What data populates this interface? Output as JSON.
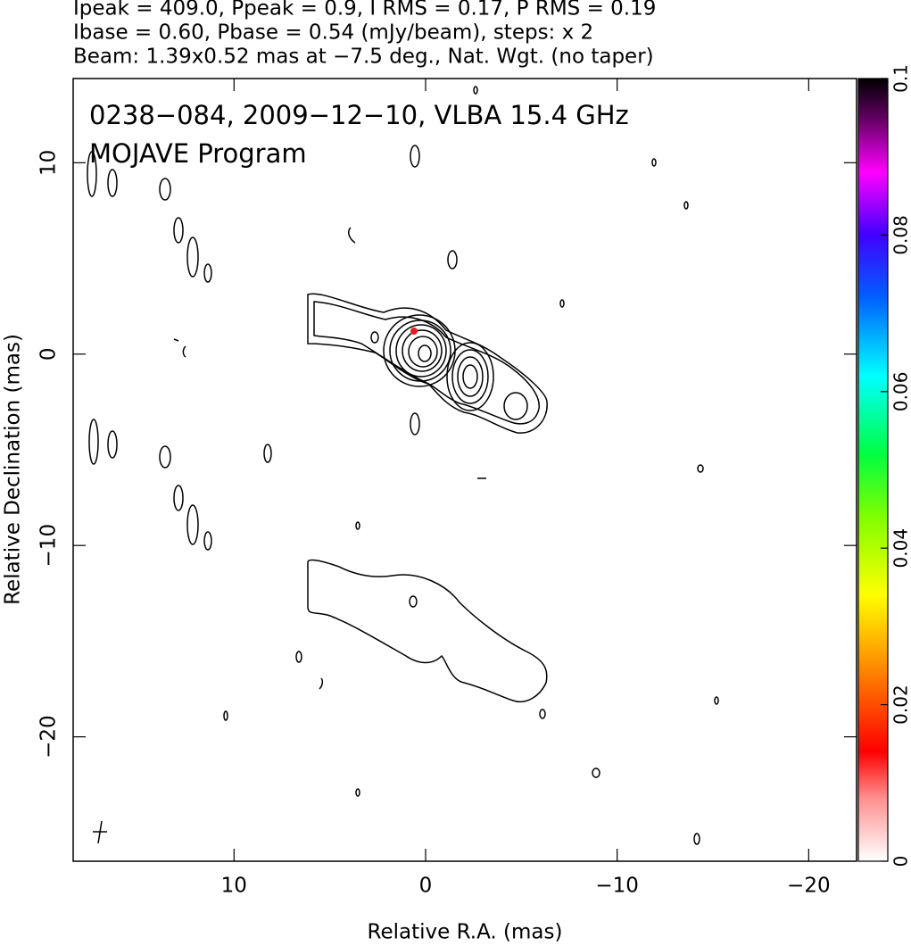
{
  "chart_data": {
    "type": "contour",
    "title_lines": [
      "Ipeak = 409.0, Ppeak = 0.9, I RMS = 0.17, P RMS = 0.19",
      "Ibase = 0.60, Pbase = 0.54 (mJy/beam), steps: x 2",
      "Beam: 1.39x0.52 mas at −7.5 deg., Nat. Wgt. (no taper)"
    ],
    "annotations": [
      "0238−084, 2009−12−10, VLBA 15.4 GHz",
      "MOJAVE Program"
    ],
    "xlabel": "Relative R.A. (mas)",
    "ylabel": "Relative Declination (mas)",
    "xlim": [
      18.4,
      -22.5
    ],
    "ylim": [
      -26.5,
      14.4
    ],
    "xticks": [
      10,
      0,
      {
        "value": -10,
        "label": "−10"
      },
      {
        "value": -20,
        "label": "−20"
      }
    ],
    "yticks": [
      10,
      0,
      {
        "value": -10,
        "label": "−10"
      },
      {
        "value": -20,
        "label": "−20"
      }
    ],
    "clim": [
      0,
      0.1
    ],
    "cticks": [
      0,
      0.02,
      0.04,
      0.06,
      0.08,
      0.1
    ]
  }
}
